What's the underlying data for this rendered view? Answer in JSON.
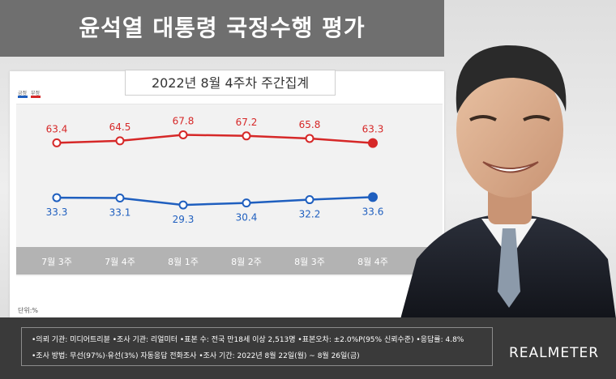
{
  "header": {
    "title": "윤석열 대통령 국정수행 평가"
  },
  "subtitle": "2022년 8월 4주차 주간집계",
  "legend": [
    {
      "label": "긍정",
      "color": "#1f5fbf"
    },
    {
      "label": "부정",
      "color": "#d62828"
    }
  ],
  "unit_label": "단위:%",
  "footer": {
    "line1": "•의뢰 기관: 미디어트리뷴 •조사 기관: 리얼미터 •표본 수: 전국 만18세 이상 2,513명 •표본오차: ±2.0%P(95% 신뢰수준) •응답률: 4.8%",
    "line2": "•조사 방법: 무선(97%)·유선(3%) 자동응답 전화조사 •조사 기간: 2022년 8월 22일(월) ~ 8월 26일(금)",
    "brand": "REALMETER"
  },
  "chart_data": {
    "type": "line",
    "title": "윤석열 대통령 국정수행 평가",
    "subtitle": "2022년 8월 4주차 주간집계",
    "categories": [
      "7월 3주",
      "7월 4주",
      "8월 1주",
      "8월 2주",
      "8월 3주",
      "8월 4주"
    ],
    "series": [
      {
        "name": "부정",
        "color": "#d62828",
        "values": [
          63.4,
          64.5,
          67.8,
          67.2,
          65.8,
          63.3
        ]
      },
      {
        "name": "긍정",
        "color": "#1f5fbf",
        "values": [
          33.3,
          33.1,
          29.3,
          30.4,
          32.2,
          33.6
        ]
      }
    ],
    "ylim": [
      0,
      100
    ],
    "legend_placement": "top-left",
    "grid": false
  }
}
